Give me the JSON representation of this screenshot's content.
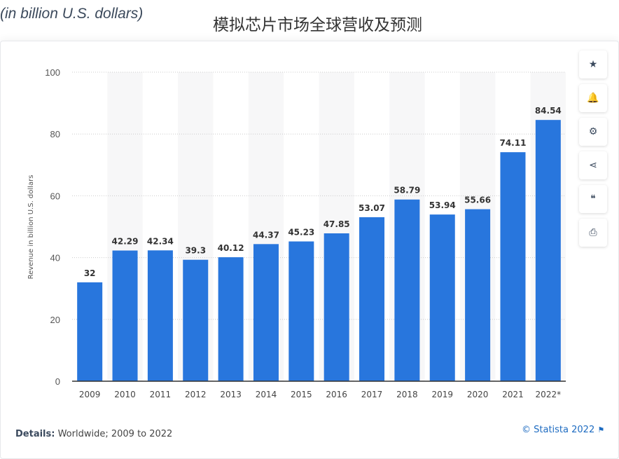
{
  "header": {
    "subtitle": "(in billion U.S. dollars)",
    "title": "模拟芯片市场全球营收及预测"
  },
  "tools": [
    {
      "name": "star-icon",
      "glyph": "★"
    },
    {
      "name": "bell-icon",
      "glyph": "🔔"
    },
    {
      "name": "gear-icon",
      "glyph": "⚙"
    },
    {
      "name": "share-icon",
      "glyph": "⋖"
    },
    {
      "name": "quote-icon",
      "glyph": "❝"
    },
    {
      "name": "print-icon",
      "glyph": "⎙"
    }
  ],
  "footer": {
    "details_label": "Details:",
    "details_text": " Worldwide; 2009 to 2022",
    "credit": "© Statista 2022",
    "flag": "⚑"
  },
  "chart_data": {
    "type": "bar",
    "title": "模拟芯片市场全球营收及预测",
    "ylabel": "Revenue in billion U.S. dollars",
    "xlabel": "",
    "categories": [
      "2009",
      "2010",
      "2011",
      "2012",
      "2013",
      "2014",
      "2015",
      "2016",
      "2017",
      "2018",
      "2019",
      "2020",
      "2021",
      "2022*"
    ],
    "values": [
      32,
      42.29,
      42.34,
      39.3,
      40.12,
      44.37,
      45.23,
      47.85,
      53.07,
      58.79,
      53.94,
      55.66,
      74.11,
      84.54
    ],
    "labels": [
      "32",
      "42.29",
      "42.34",
      "39.3",
      "40.12",
      "44.37",
      "45.23",
      "47.85",
      "53.07",
      "58.79",
      "53.94",
      "55.66",
      "74.11",
      "84.54"
    ],
    "ylim": [
      0,
      100
    ],
    "yticks": [
      0,
      20,
      40,
      60,
      80,
      100
    ],
    "grid": true,
    "bar_color": "#2876dd"
  }
}
